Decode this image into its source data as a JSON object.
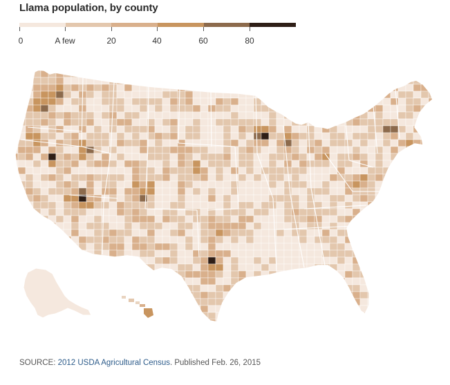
{
  "title": "Llama population, by county",
  "legend": {
    "colors": [
      "#f5e8de",
      "#e3c7ad",
      "#d9b08c",
      "#c8955f",
      "#8c6a4c",
      "#2e1e16"
    ],
    "labels": [
      "0",
      "A few",
      "20",
      "40",
      "60",
      "80"
    ]
  },
  "source": {
    "prefix": "SOURCE: ",
    "link_text": "2012 USDA Agricultural Census",
    "suffix": ". Published Feb. 26, 2015"
  },
  "colors": {
    "state_border": "#ffffff",
    "link": "#2c5b8a"
  }
}
